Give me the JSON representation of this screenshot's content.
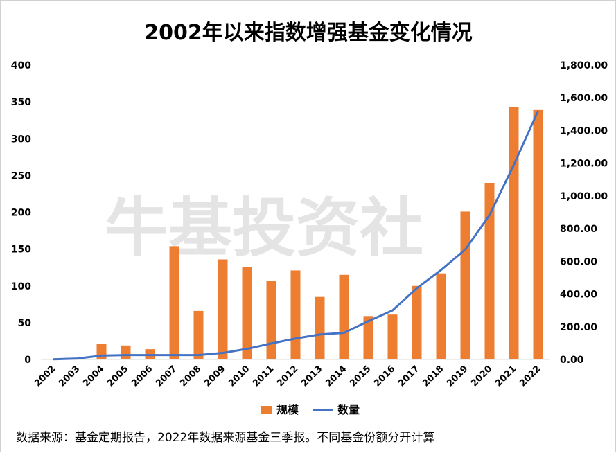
{
  "chart_data": {
    "type": "bar+line",
    "title": "2002年以来指数增强基金变化情况",
    "categories": [
      "2002",
      "2003",
      "2004",
      "2005",
      "2006",
      "2007",
      "2008",
      "2009",
      "2010",
      "2011",
      "2012",
      "2013",
      "2014",
      "2015",
      "2016",
      "2017",
      "2018",
      "2019",
      "2020",
      "2021",
      "2022"
    ],
    "series": [
      {
        "name": "规模",
        "type": "bar",
        "axis": "left",
        "color": "#ED7D31",
        "values": [
          0,
          0,
          21,
          19,
          14,
          154,
          66,
          136,
          126,
          107,
          121,
          85,
          115,
          59,
          61,
          100,
          117,
          201,
          240,
          343,
          339
        ]
      },
      {
        "name": "数量",
        "type": "line",
        "axis": "right",
        "color": "#4472C4",
        "values": [
          1,
          6,
          24,
          27,
          27,
          27,
          27,
          40,
          65,
          98,
          128,
          153,
          163,
          234,
          300,
          436,
          547,
          673,
          883,
          1190,
          1520
        ]
      }
    ],
    "y_left": {
      "min": 0,
      "max": 400,
      "ticks": [
        "0",
        "50",
        "100",
        "150",
        "200",
        "250",
        "300",
        "350",
        "400"
      ]
    },
    "y_right": {
      "min": 0,
      "max": 1800,
      "ticks": [
        "0.00",
        "200.00",
        "400.00",
        "600.00",
        "800.00",
        "1,000.00",
        "1,200.00",
        "1,400.00",
        "1,600.00",
        "1,800.00"
      ]
    },
    "legend": [
      "规模",
      "数量"
    ],
    "legend_position": "bottom",
    "grid": false
  },
  "watermark": "牛基投资社",
  "source_note": "数据来源：基金定期报告，2022年数据来源基金三季报。不同基金份额分开计算"
}
